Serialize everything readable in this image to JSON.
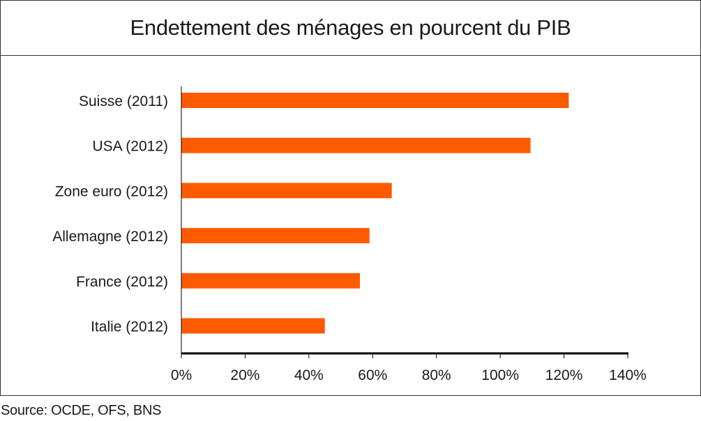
{
  "colors": {
    "bar": "#ff5a00",
    "axis": "#000000",
    "frame": "#333333",
    "text": "#1a1a1a"
  },
  "source": "Source: OCDE, OFS, BNS",
  "chart_data": {
    "type": "bar",
    "orientation": "horizontal",
    "title": "Endettement des ménages en pourcent du PIB",
    "categories": [
      "Suisse (2011)",
      "USA (2012)",
      "Zone euro (2012)",
      "Allemagne (2012)",
      "France (2012)",
      "Italie (2012)"
    ],
    "values": [
      121.5,
      109.5,
      66.0,
      59.0,
      56.0,
      45.0
    ],
    "xlim": [
      0,
      140
    ],
    "xticks": [
      0,
      20,
      40,
      60,
      80,
      100,
      120,
      140
    ],
    "xtick_labels": [
      "0%",
      "20%",
      "40%",
      "60%",
      "80%",
      "100%",
      "120%",
      "140%"
    ],
    "unit": "%",
    "grid": false,
    "legend": "none"
  }
}
